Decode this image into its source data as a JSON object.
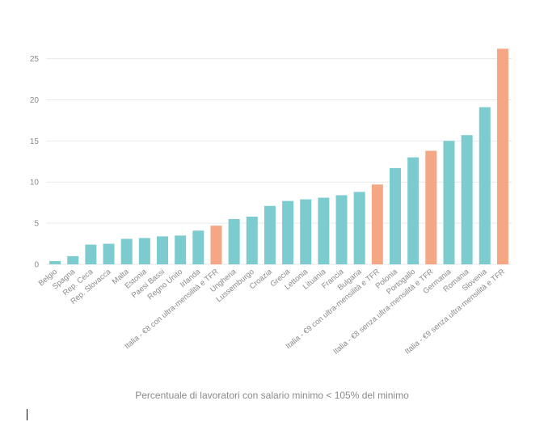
{
  "chart_data": {
    "type": "bar",
    "title": "",
    "xlabel": "Percentuale di lavoratori con salario minimo < 105% del minimo",
    "ylabel": "",
    "ylim": [
      0,
      27
    ],
    "yticks": [
      0,
      5,
      10,
      15,
      20,
      25
    ],
    "grid": true,
    "categories": [
      "Belgio",
      "Spagna",
      "Rep. Ceca",
      "Rep. Slovacca",
      "Malta",
      "Estonia",
      "Paesi Bassi",
      "Regno Unito",
      "Irlanda",
      "Italia - €8 con ultra-mensilità e TFR",
      "Ungheria",
      "Lussemburgo",
      "Croazia",
      "Grecia",
      "Lettonia",
      "Lituania",
      "Francia",
      "Bulgaria",
      "Italia - €9 con ultra-mensilità e TFR",
      "Polonia",
      "Portogallo",
      "Italia - €8 senza ultra-mensilità e TFR",
      "Germania",
      "Romania",
      "Slovenia",
      "Italia - €9 senza ultra-mensilità e TFR"
    ],
    "values": [
      0.4,
      1.0,
      2.4,
      2.5,
      3.1,
      3.2,
      3.4,
      3.5,
      4.1,
      4.7,
      5.5,
      5.8,
      7.1,
      7.7,
      7.9,
      8.1,
      8.4,
      8.8,
      9.7,
      11.7,
      13.0,
      13.8,
      15.0,
      15.7,
      19.1,
      26.2
    ],
    "highlight": [
      false,
      false,
      false,
      false,
      false,
      false,
      false,
      false,
      false,
      true,
      false,
      false,
      false,
      false,
      false,
      false,
      false,
      false,
      true,
      false,
      false,
      true,
      false,
      false,
      false,
      true
    ],
    "colors": {
      "default": "#7ccbcf",
      "highlight": "#f5a684"
    }
  }
}
